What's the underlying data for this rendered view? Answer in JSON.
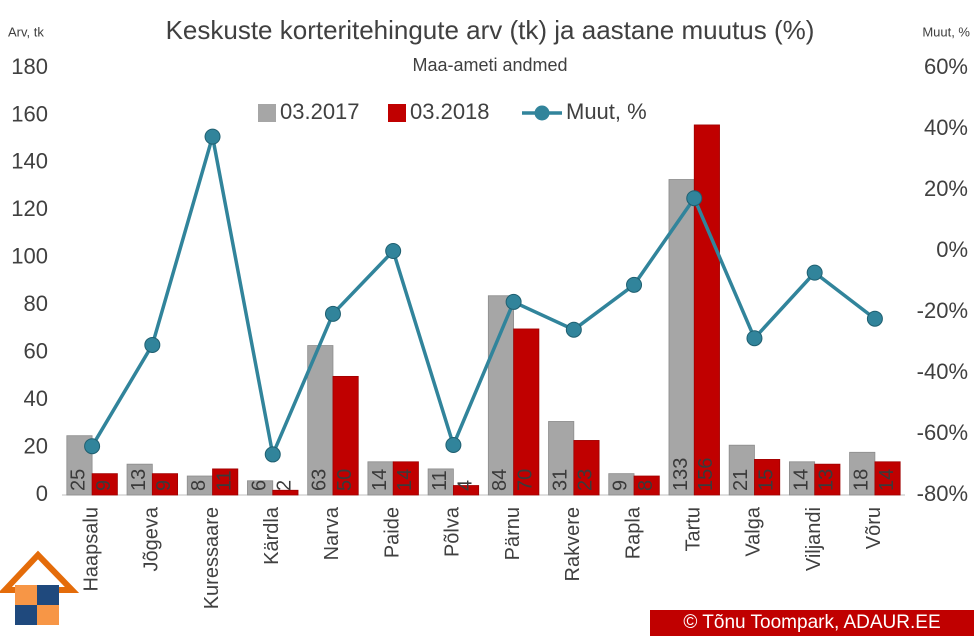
{
  "chart_data": {
    "type": "bar-line",
    "title": "Keskuste korteritehingute arv (tk) ja aastane muutus (%)",
    "subtitle": "Maa-ameti andmed",
    "y_label": "Arv, tk",
    "y2_label": "Muut, %",
    "annotations": [
      "© Tõnu Toompark, ADAUR.EE"
    ],
    "categories": [
      "Haapsalu",
      "Jõgeva",
      "Kuressaare",
      "Kärdla",
      "Narva",
      "Paide",
      "Põlva",
      "Pärnu",
      "Rakvere",
      "Rapla",
      "Tartu",
      "Valga",
      "Viljandi",
      "Võru"
    ],
    "series": [
      {
        "name": "03.2017",
        "type": "bar",
        "color": "#a6a6a6",
        "values": [
          25,
          13,
          8,
          6,
          63,
          14,
          11,
          84,
          31,
          9,
          133,
          21,
          14,
          18
        ]
      },
      {
        "name": "03.2018",
        "type": "bar",
        "color": "#c00000",
        "values": [
          9,
          9,
          11,
          2,
          50,
          14,
          4,
          70,
          23,
          8,
          156,
          15,
          13,
          14
        ]
      },
      {
        "name": "Muut, %",
        "type": "line",
        "axis": "y2",
        "color": "#31849b",
        "values": [
          -64,
          -30.8,
          37.5,
          -66.7,
          -20.6,
          0,
          -63.6,
          -16.7,
          -25.8,
          -11.1,
          17.3,
          -28.6,
          -7.1,
          -22.2
        ]
      }
    ],
    "ylim": [
      0,
      180
    ],
    "yticks": [
      0,
      20,
      40,
      60,
      80,
      100,
      120,
      140,
      160,
      180
    ],
    "y2lim": [
      -80,
      60
    ],
    "y2ticks": [
      {
        "value": -80,
        "label": "-80%"
      },
      {
        "value": -60,
        "label": "-60%"
      },
      {
        "value": -40,
        "label": "-40%"
      },
      {
        "value": -20,
        "label": "-20%"
      },
      {
        "value": 0,
        "label": "0%"
      },
      {
        "value": 20,
        "label": "20%"
      },
      {
        "value": 40,
        "label": "40%"
      },
      {
        "value": 60,
        "label": "60%"
      }
    ],
    "legend": "top",
    "grid": false,
    "value_labels_shown": true
  }
}
